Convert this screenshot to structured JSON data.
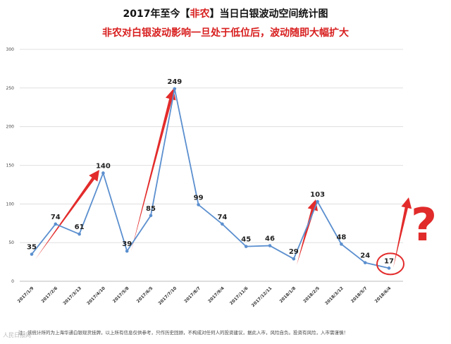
{
  "title": {
    "prefix": "2017年至今【",
    "highlight": "非农",
    "suffix": "】当日白银波动空间统计图"
  },
  "subtitle": "非农对白银波动影响一旦处于低位后，波动随即大幅扩大",
  "footnote": "注：该统计所的为上海华通白银现货挂牌，以上所有信息仅供参考，只作历史回顾，不构成对任何人的投资建议，据此入市，风险自负。投资有风险，入市需谨慎！",
  "watermark": "人民日报网",
  "question_mark": "?",
  "colors": {
    "line": "#5b8fcf",
    "grid": "#d9d9d9",
    "arrow": "#e32b2b",
    "highlight_circle": "#e32b2b",
    "title_accent": "#d81e1e"
  },
  "chart_data": {
    "type": "line",
    "title": "2017年至今【非农】当日白银波动空间统计图",
    "subtitle": "非农对白银波动影响一旦处于低位后，波动随即大幅扩大",
    "categories": [
      "2017/1/9",
      "2017/2/6",
      "2017/3/13",
      "2017/4/10",
      "2017/5/8",
      "2017/6/5",
      "2017/7/10",
      "2017/8/7",
      "2017/9/4",
      "2017/11/6",
      "2017/12/11",
      "2018/1/8",
      "2018/2/5",
      "2018/3/12",
      "2018/5/7",
      "2018/6/4"
    ],
    "values": [
      35,
      74,
      61,
      140,
      39,
      85,
      249,
      99,
      74,
      45,
      46,
      29,
      103,
      48,
      24,
      17
    ],
    "yticks": [
      0,
      50,
      100,
      150,
      200,
      250,
      300
    ],
    "ylim": [
      0,
      300
    ],
    "grid": true,
    "legend": "none",
    "highlighted_point": "2018/6/4"
  }
}
